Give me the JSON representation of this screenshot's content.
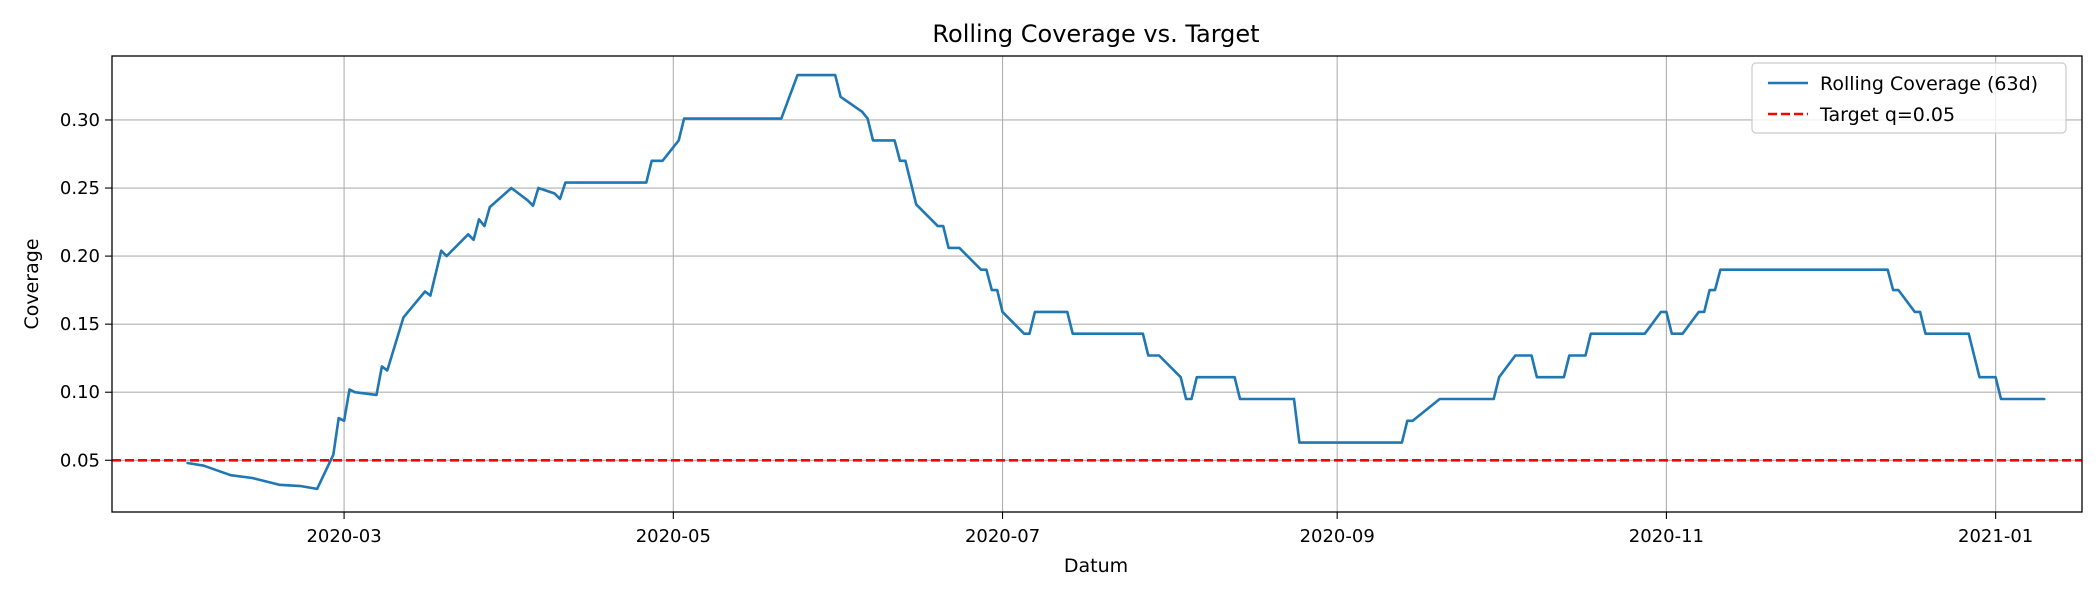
{
  "chart_data": {
    "type": "line",
    "title": "Rolling Coverage vs. Target",
    "xlabel": "Datum",
    "ylabel": "Coverage",
    "x_axis": {
      "type": "date",
      "range": [
        "2020-01-18",
        "2021-01-17"
      ],
      "tick_dates": [
        "2020-03-01",
        "2020-05-01",
        "2020-07-01",
        "2020-09-01",
        "2020-11-01",
        "2021-01-01"
      ],
      "tick_labels": [
        "2020-03",
        "2020-05",
        "2020-07",
        "2020-09",
        "2020-11",
        "2021-01"
      ]
    },
    "y_axis": {
      "range": [
        0.012,
        0.347
      ],
      "ticks": [
        0.05,
        0.1,
        0.15,
        0.2,
        0.25,
        0.3
      ],
      "tick_labels": [
        "0.05",
        "0.10",
        "0.15",
        "0.20",
        "0.25",
        "0.30"
      ]
    },
    "grid": true,
    "legend_position": "top-right",
    "series": [
      {
        "name": "Rolling Coverage (63d)",
        "color": "#1f77b4",
        "style": "solid",
        "points": [
          [
            "2020-02-01",
            0.048
          ],
          [
            "2020-02-04",
            0.046
          ],
          [
            "2020-02-09",
            0.039
          ],
          [
            "2020-02-13",
            0.037
          ],
          [
            "2020-02-18",
            0.032
          ],
          [
            "2020-02-22",
            0.031
          ],
          [
            "2020-02-25",
            0.029
          ],
          [
            "2020-02-28",
            0.054
          ],
          [
            "2020-02-29",
            0.081
          ],
          [
            "2020-03-01",
            0.079
          ],
          [
            "2020-03-02",
            0.102
          ],
          [
            "2020-03-03",
            0.1
          ],
          [
            "2020-03-07",
            0.098
          ],
          [
            "2020-03-08",
            0.119
          ],
          [
            "2020-03-09",
            0.116
          ],
          [
            "2020-03-12",
            0.155
          ],
          [
            "2020-03-16",
            0.174
          ],
          [
            "2020-03-17",
            0.171
          ],
          [
            "2020-03-19",
            0.204
          ],
          [
            "2020-03-20",
            0.2
          ],
          [
            "2020-03-24",
            0.216
          ],
          [
            "2020-03-25",
            0.212
          ],
          [
            "2020-03-26",
            0.227
          ],
          [
            "2020-03-27",
            0.222
          ],
          [
            "2020-03-28",
            0.236
          ],
          [
            "2020-04-01",
            0.25
          ],
          [
            "2020-04-04",
            0.241
          ],
          [
            "2020-04-05",
            0.237
          ],
          [
            "2020-04-06",
            0.25
          ],
          [
            "2020-04-09",
            0.246
          ],
          [
            "2020-04-10",
            0.242
          ],
          [
            "2020-04-11",
            0.254
          ],
          [
            "2020-04-26",
            0.254
          ],
          [
            "2020-04-27",
            0.27
          ],
          [
            "2020-04-29",
            0.27
          ],
          [
            "2020-05-02",
            0.285
          ],
          [
            "2020-05-03",
            0.301
          ],
          [
            "2020-05-21",
            0.301
          ],
          [
            "2020-05-24",
            0.333
          ],
          [
            "2020-05-31",
            0.333
          ],
          [
            "2020-06-01",
            0.317
          ],
          [
            "2020-06-05",
            0.306
          ],
          [
            "2020-06-06",
            0.301
          ],
          [
            "2020-06-07",
            0.285
          ],
          [
            "2020-06-11",
            0.285
          ],
          [
            "2020-06-12",
            0.27
          ],
          [
            "2020-06-13",
            0.27
          ],
          [
            "2020-06-15",
            0.238
          ],
          [
            "2020-06-19",
            0.222
          ],
          [
            "2020-06-20",
            0.222
          ],
          [
            "2020-06-21",
            0.206
          ],
          [
            "2020-06-23",
            0.206
          ],
          [
            "2020-06-27",
            0.19
          ],
          [
            "2020-06-28",
            0.19
          ],
          [
            "2020-06-29",
            0.175
          ],
          [
            "2020-06-30",
            0.175
          ],
          [
            "2020-07-01",
            0.159
          ],
          [
            "2020-07-05",
            0.143
          ],
          [
            "2020-07-06",
            0.143
          ],
          [
            "2020-07-07",
            0.159
          ],
          [
            "2020-07-13",
            0.159
          ],
          [
            "2020-07-14",
            0.143
          ],
          [
            "2020-07-27",
            0.143
          ],
          [
            "2020-07-28",
            0.127
          ],
          [
            "2020-07-30",
            0.127
          ],
          [
            "2020-08-03",
            0.111
          ],
          [
            "2020-08-04",
            0.095
          ],
          [
            "2020-08-05",
            0.095
          ],
          [
            "2020-08-06",
            0.111
          ],
          [
            "2020-08-13",
            0.111
          ],
          [
            "2020-08-14",
            0.095
          ],
          [
            "2020-08-24",
            0.095
          ],
          [
            "2020-08-25",
            0.063
          ],
          [
            "2020-09-13",
            0.063
          ],
          [
            "2020-09-14",
            0.079
          ],
          [
            "2020-09-15",
            0.079
          ],
          [
            "2020-09-20",
            0.095
          ],
          [
            "2020-09-30",
            0.095
          ],
          [
            "2020-10-01",
            0.111
          ],
          [
            "2020-10-04",
            0.127
          ],
          [
            "2020-10-07",
            0.127
          ],
          [
            "2020-10-08",
            0.111
          ],
          [
            "2020-10-13",
            0.111
          ],
          [
            "2020-10-14",
            0.127
          ],
          [
            "2020-10-17",
            0.127
          ],
          [
            "2020-10-18",
            0.143
          ],
          [
            "2020-10-28",
            0.143
          ],
          [
            "2020-10-31",
            0.159
          ],
          [
            "2020-11-01",
            0.159
          ],
          [
            "2020-11-02",
            0.143
          ],
          [
            "2020-11-04",
            0.143
          ],
          [
            "2020-11-07",
            0.159
          ],
          [
            "2020-11-08",
            0.159
          ],
          [
            "2020-11-09",
            0.175
          ],
          [
            "2020-11-10",
            0.175
          ],
          [
            "2020-11-11",
            0.19
          ],
          [
            "2020-12-12",
            0.19
          ],
          [
            "2020-12-13",
            0.175
          ],
          [
            "2020-12-14",
            0.175
          ],
          [
            "2020-12-17",
            0.159
          ],
          [
            "2020-12-18",
            0.159
          ],
          [
            "2020-12-19",
            0.143
          ],
          [
            "2020-12-27",
            0.143
          ],
          [
            "2020-12-29",
            0.111
          ],
          [
            "2021-01-01",
            0.111
          ],
          [
            "2021-01-02",
            0.095
          ],
          [
            "2021-01-10",
            0.095
          ]
        ]
      },
      {
        "name": "Target q=0.05",
        "color": "#ff0000",
        "style": "dashed",
        "constant": 0.05
      }
    ]
  }
}
